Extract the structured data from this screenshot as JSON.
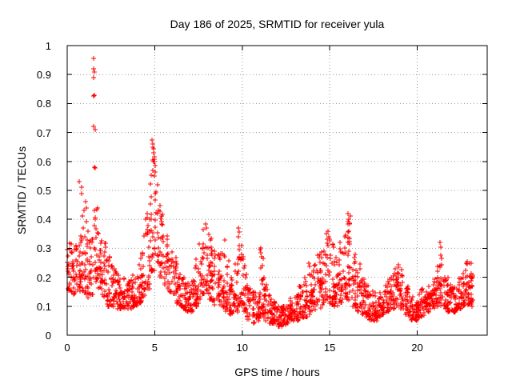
{
  "chart_data": {
    "type": "scatter",
    "title": "Day 186 of 2025, SRMTID for receiver yula",
    "xlabel": "GPS time / hours",
    "ylabel": "SRMTID / TECUs",
    "xlim": [
      0,
      24
    ],
    "ylim": [
      0,
      1
    ],
    "xticks": [
      0,
      5,
      10,
      15,
      20
    ],
    "xtick_labels": [
      "0",
      "5",
      "10",
      "15",
      "20"
    ],
    "yticks": [
      0,
      0.1,
      0.2,
      0.3,
      0.4,
      0.5,
      0.6,
      0.7,
      0.8,
      0.9,
      1
    ],
    "ytick_labels": [
      "0",
      "0.1",
      "0.2",
      "0.3",
      "0.4",
      "0.5",
      "0.6",
      "0.7",
      "0.8",
      "0.9",
      "1"
    ],
    "grid": true,
    "legend_position": "none",
    "marker": "plus",
    "colors": {
      "points": "#ff0000",
      "grid": "#999999",
      "frame": "#000000",
      "text": "#000000",
      "background": "#ffffff"
    },
    "points_per_bin": 22,
    "envelope_bins": [
      [
        0.0,
        0.15,
        0.32
      ],
      [
        0.25,
        0.14,
        0.3
      ],
      [
        0.5,
        0.15,
        0.33
      ],
      [
        0.75,
        0.15,
        0.42
      ],
      [
        1.0,
        0.13,
        0.4
      ],
      [
        1.25,
        0.14,
        0.35
      ],
      [
        1.5,
        0.18,
        0.44
      ],
      [
        1.75,
        0.16,
        0.36
      ],
      [
        2.0,
        0.13,
        0.33
      ],
      [
        2.25,
        0.1,
        0.28
      ],
      [
        2.5,
        0.1,
        0.25
      ],
      [
        2.75,
        0.09,
        0.22
      ],
      [
        3.0,
        0.09,
        0.2
      ],
      [
        3.25,
        0.09,
        0.2
      ],
      [
        3.5,
        0.09,
        0.21
      ],
      [
        3.75,
        0.1,
        0.24
      ],
      [
        4.0,
        0.11,
        0.28
      ],
      [
        4.25,
        0.13,
        0.35
      ],
      [
        4.5,
        0.16,
        0.45
      ],
      [
        4.75,
        0.22,
        0.62
      ],
      [
        5.0,
        0.25,
        0.58
      ],
      [
        5.25,
        0.2,
        0.45
      ],
      [
        5.5,
        0.17,
        0.35
      ],
      [
        5.75,
        0.15,
        0.3
      ],
      [
        6.0,
        0.13,
        0.28
      ],
      [
        6.25,
        0.11,
        0.22
      ],
      [
        6.5,
        0.09,
        0.2
      ],
      [
        6.75,
        0.08,
        0.18
      ],
      [
        7.0,
        0.08,
        0.2
      ],
      [
        7.25,
        0.1,
        0.28
      ],
      [
        7.5,
        0.12,
        0.33
      ],
      [
        7.75,
        0.14,
        0.39
      ],
      [
        8.0,
        0.12,
        0.36
      ],
      [
        8.25,
        0.1,
        0.3
      ],
      [
        8.5,
        0.1,
        0.28
      ],
      [
        8.75,
        0.09,
        0.3
      ],
      [
        9.0,
        0.08,
        0.26
      ],
      [
        9.25,
        0.07,
        0.2
      ],
      [
        9.5,
        0.08,
        0.25
      ],
      [
        9.75,
        0.1,
        0.37
      ],
      [
        10.0,
        0.08,
        0.28
      ],
      [
        10.25,
        0.05,
        0.18
      ],
      [
        10.5,
        0.04,
        0.15
      ],
      [
        10.75,
        0.05,
        0.16
      ],
      [
        11.0,
        0.06,
        0.3
      ],
      [
        11.25,
        0.05,
        0.18
      ],
      [
        11.5,
        0.04,
        0.14
      ],
      [
        11.75,
        0.04,
        0.12
      ],
      [
        12.0,
        0.03,
        0.1
      ],
      [
        12.25,
        0.035,
        0.1
      ],
      [
        12.5,
        0.04,
        0.12
      ],
      [
        12.75,
        0.05,
        0.13
      ],
      [
        13.0,
        0.05,
        0.15
      ],
      [
        13.25,
        0.06,
        0.17
      ],
      [
        13.5,
        0.06,
        0.2
      ],
      [
        13.75,
        0.07,
        0.25
      ],
      [
        14.0,
        0.08,
        0.25
      ],
      [
        14.25,
        0.09,
        0.28
      ],
      [
        14.5,
        0.1,
        0.3
      ],
      [
        14.75,
        0.1,
        0.36
      ],
      [
        15.0,
        0.1,
        0.32
      ],
      [
        15.25,
        0.1,
        0.28
      ],
      [
        15.5,
        0.11,
        0.32
      ],
      [
        15.75,
        0.12,
        0.35
      ],
      [
        16.0,
        0.12,
        0.42
      ],
      [
        16.25,
        0.1,
        0.28
      ],
      [
        16.5,
        0.08,
        0.25
      ],
      [
        16.75,
        0.07,
        0.2
      ],
      [
        17.0,
        0.06,
        0.18
      ],
      [
        17.25,
        0.05,
        0.16
      ],
      [
        17.5,
        0.05,
        0.15
      ],
      [
        17.75,
        0.06,
        0.16
      ],
      [
        18.0,
        0.07,
        0.18
      ],
      [
        18.25,
        0.08,
        0.2
      ],
      [
        18.5,
        0.09,
        0.22
      ],
      [
        18.75,
        0.1,
        0.25
      ],
      [
        19.0,
        0.09,
        0.25
      ],
      [
        19.25,
        0.07,
        0.18
      ],
      [
        19.5,
        0.05,
        0.14
      ],
      [
        19.75,
        0.05,
        0.13
      ],
      [
        20.0,
        0.06,
        0.15
      ],
      [
        20.25,
        0.07,
        0.16
      ],
      [
        20.5,
        0.08,
        0.18
      ],
      [
        20.75,
        0.09,
        0.2
      ],
      [
        21.0,
        0.1,
        0.24
      ],
      [
        21.25,
        0.1,
        0.28
      ],
      [
        21.5,
        0.09,
        0.2
      ],
      [
        21.75,
        0.08,
        0.18
      ],
      [
        22.0,
        0.08,
        0.18
      ],
      [
        22.25,
        0.09,
        0.2
      ],
      [
        22.5,
        0.1,
        0.22
      ],
      [
        22.75,
        0.1,
        0.26
      ],
      [
        23.0,
        0.1,
        0.22
      ]
    ],
    "peak_points": [
      [
        0.7,
        0.53
      ],
      [
        0.8,
        0.51
      ],
      [
        0.83,
        0.49
      ],
      [
        0.95,
        0.43
      ],
      [
        1.05,
        0.46
      ],
      [
        1.1,
        0.44
      ],
      [
        1.5,
        0.955
      ],
      [
        1.52,
        0.92
      ],
      [
        1.55,
        0.91
      ],
      [
        1.53,
        0.89
      ],
      [
        1.5,
        0.825
      ],
      [
        1.56,
        0.83
      ],
      [
        1.52,
        0.72
      ],
      [
        1.58,
        0.71
      ],
      [
        1.55,
        0.58
      ],
      [
        1.6,
        0.577
      ],
      [
        1.55,
        0.43
      ],
      [
        1.58,
        0.4
      ],
      [
        4.85,
        0.675
      ],
      [
        4.9,
        0.66
      ],
      [
        4.88,
        0.65
      ],
      [
        4.95,
        0.645
      ],
      [
        4.92,
        0.63
      ],
      [
        4.97,
        0.615
      ],
      [
        5.0,
        0.6
      ],
      [
        4.93,
        0.6
      ],
      [
        5.02,
        0.585
      ],
      [
        4.87,
        0.57
      ],
      [
        4.98,
        0.55
      ],
      [
        7.9,
        0.385
      ],
      [
        7.95,
        0.37
      ],
      [
        8.2,
        0.33
      ],
      [
        9.0,
        0.33
      ],
      [
        9.8,
        0.37
      ],
      [
        9.85,
        0.355
      ],
      [
        9.78,
        0.34
      ],
      [
        9.82,
        0.31
      ],
      [
        11.05,
        0.3
      ],
      [
        11.08,
        0.285
      ],
      [
        11.1,
        0.27
      ],
      [
        13.8,
        0.25
      ],
      [
        14.9,
        0.36
      ],
      [
        14.93,
        0.34
      ],
      [
        14.88,
        0.31
      ],
      [
        15.6,
        0.32
      ],
      [
        16.05,
        0.42
      ],
      [
        16.08,
        0.4
      ],
      [
        16.03,
        0.385
      ],
      [
        16.1,
        0.36
      ],
      [
        21.3,
        0.32
      ],
      [
        21.33,
        0.305
      ],
      [
        22.8,
        0.25
      ],
      [
        22.85,
        0.245
      ],
      [
        23.1,
        0.25
      ]
    ],
    "x_data_end": 23.2
  }
}
